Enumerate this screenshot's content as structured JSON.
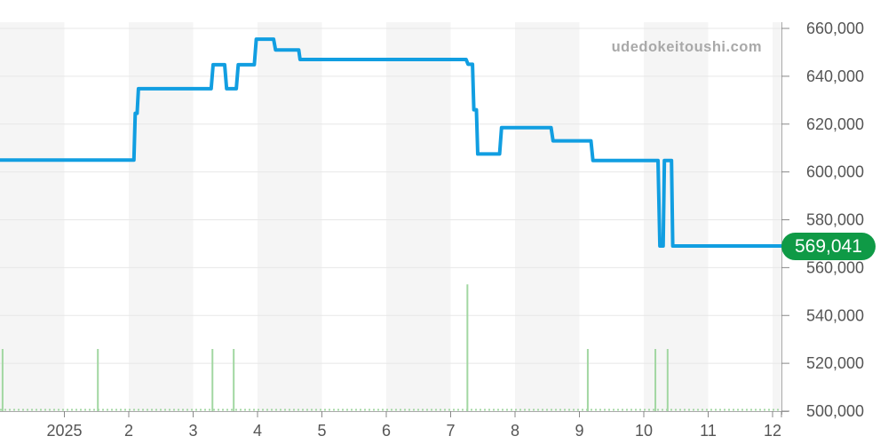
{
  "watermark": "udedokeitoushi.com",
  "price_label": {
    "text": "569,041",
    "value": 569041
  },
  "colors": {
    "price_line": "#119ee1",
    "volume_bar": "#a2d7a2",
    "price_badge_bg": "#0f9a46",
    "price_badge_text": "#ffffff",
    "grid_line": "#e7e7e7",
    "month_band": "#f5f5f5",
    "axis_line": "#aaaaaa",
    "tick_mark": "#888888",
    "tick_label": "#555555",
    "watermark_text": "#a9a9a9"
  },
  "chart_data": {
    "type": "line",
    "title": "",
    "xlabel": "",
    "ylabel": "",
    "x_axis": {
      "tick_labels": [
        "2025",
        "2",
        "3",
        "4",
        "5",
        "6",
        "7",
        "8",
        "9",
        "10",
        "11",
        "12"
      ],
      "tick_positions_months": [
        1,
        2,
        3,
        4,
        5,
        6,
        7,
        8,
        9,
        10,
        11,
        12
      ],
      "range_months": [
        0,
        12.14
      ],
      "mapping": "x unit = months; 1 is the tick labeled 2025 (January), 12 is December"
    },
    "y_axis": {
      "side": "right",
      "min": 500000,
      "max": 660000,
      "step": 20000,
      "tick_labels": [
        "660,000",
        "640,000",
        "620,000",
        "600,000",
        "580,000",
        "560,000",
        "540,000",
        "520,000",
        "500,000"
      ]
    },
    "grid": true,
    "background_bands": "alternating light-gray / white monthly bands, gray first at left edge",
    "legend": "none",
    "current_value": 569041,
    "series": [
      {
        "name": "price",
        "type": "step_line",
        "points": [
          [
            0.0,
            605000
          ],
          [
            2.08,
            605000
          ],
          [
            2.1,
            624500
          ],
          [
            2.13,
            624500
          ],
          [
            2.15,
            634800
          ],
          [
            3.28,
            634800
          ],
          [
            3.31,
            644800
          ],
          [
            3.49,
            644800
          ],
          [
            3.52,
            634800
          ],
          [
            3.67,
            634800
          ],
          [
            3.7,
            644800
          ],
          [
            3.95,
            644800
          ],
          [
            3.98,
            655500
          ],
          [
            4.25,
            655500
          ],
          [
            4.28,
            651000
          ],
          [
            4.64,
            651000
          ],
          [
            4.66,
            647000
          ],
          [
            7.24,
            647000
          ],
          [
            7.27,
            645000
          ],
          [
            7.34,
            645000
          ],
          [
            7.36,
            626000
          ],
          [
            7.4,
            626000
          ],
          [
            7.42,
            607500
          ],
          [
            7.76,
            607500
          ],
          [
            7.79,
            618500
          ],
          [
            8.56,
            618500
          ],
          [
            8.59,
            613000
          ],
          [
            9.18,
            613000
          ],
          [
            9.21,
            604800
          ],
          [
            10.22,
            604800
          ],
          [
            10.25,
            569041
          ],
          [
            10.3,
            569041
          ],
          [
            10.32,
            604800
          ],
          [
            10.43,
            604800
          ],
          [
            10.45,
            569041
          ],
          [
            12.14,
            569041
          ]
        ]
      },
      {
        "name": "volume_spikes",
        "type": "bar",
        "baseline": 500000,
        "points": [
          [
            0.04,
            526000
          ],
          [
            1.52,
            526000
          ],
          [
            3.3,
            526000
          ],
          [
            3.63,
            526000
          ],
          [
            7.26,
            553000
          ],
          [
            9.13,
            526000
          ],
          [
            10.18,
            526000
          ],
          [
            10.37,
            526000
          ]
        ]
      }
    ]
  }
}
